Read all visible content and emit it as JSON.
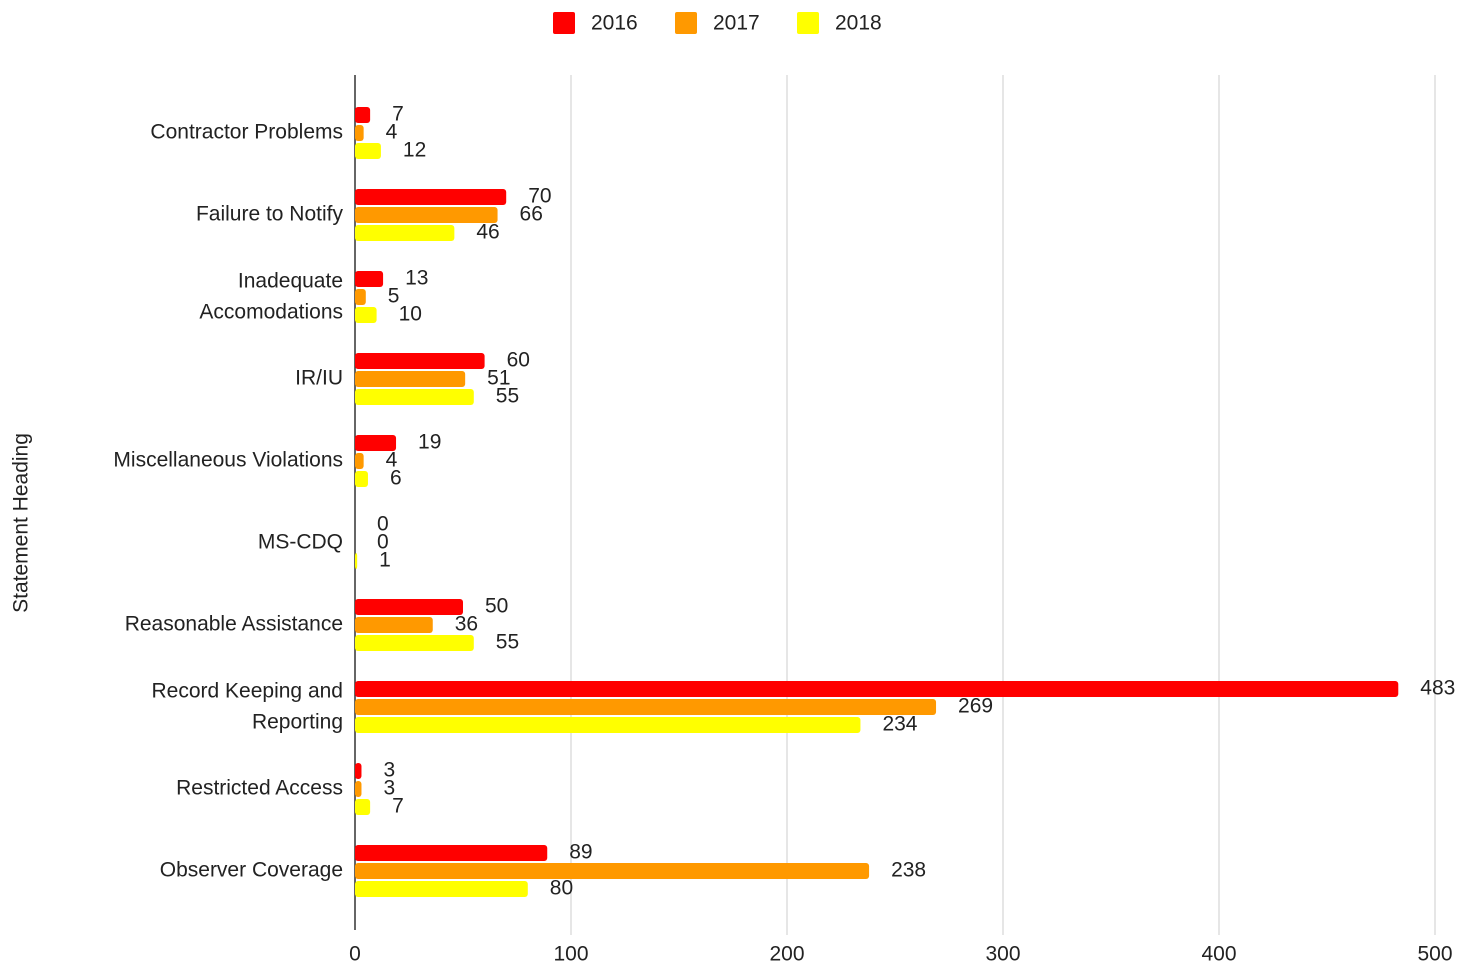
{
  "chart_data": {
    "type": "bar",
    "orientation": "horizontal",
    "y_label": "Statement Heading",
    "categories": [
      "Contractor Problems",
      "Failure to Notify",
      "Inadequate\nAccomodations",
      "IR/IU",
      "Miscellaneous Violations",
      "MS-CDQ",
      "Reasonable Assistance",
      "Record Keeping and\nReporting",
      "Restricted Access",
      "Observer Coverage"
    ],
    "series": [
      {
        "name": "2016",
        "color": "#ff0000",
        "values": [
          7,
          70,
          13,
          60,
          19,
          0,
          50,
          483,
          3,
          89
        ]
      },
      {
        "name": "2017",
        "color": "#ff9900",
        "values": [
          4,
          66,
          5,
          51,
          4,
          0,
          36,
          269,
          3,
          238
        ]
      },
      {
        "name": "2018",
        "color": "#ffff00",
        "values": [
          12,
          46,
          10,
          55,
          6,
          1,
          55,
          234,
          7,
          80
        ]
      }
    ],
    "xlim": [
      0,
      500
    ],
    "xticks": [
      0,
      100,
      200,
      300,
      400,
      500
    ],
    "grid": true,
    "legend": "top"
  }
}
